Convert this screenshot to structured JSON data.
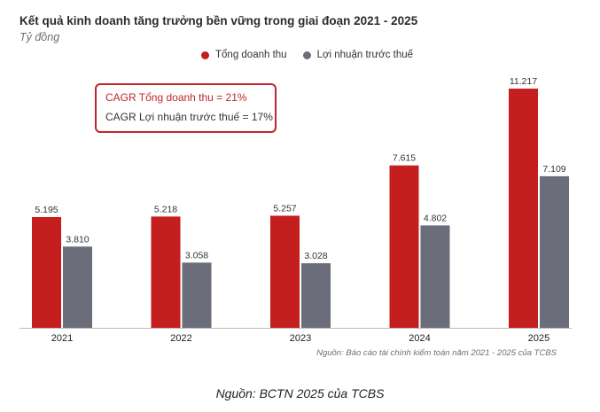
{
  "chart_data": {
    "type": "bar",
    "title": "Kết quả kinh doanh tăng trưởng bền vững trong giai đoạn 2021 - 2025",
    "subtitle": "Tỷ đồng",
    "categories": [
      "2021",
      "2022",
      "2023",
      "2024",
      "2025"
    ],
    "series": [
      {
        "name": "Tổng doanh thu",
        "values": [
          5195,
          5218,
          5257,
          7615,
          11217
        ],
        "labels": [
          "5.195",
          "5.218",
          "5.257",
          "7.615",
          "11.217"
        ],
        "color": "#c41e1e"
      },
      {
        "name": "Lợi nhuận trước thuế",
        "values": [
          3810,
          3058,
          3028,
          4802,
          7109
        ],
        "labels": [
          "3.810",
          "3.058",
          "3.028",
          "4.802",
          "7.109"
        ],
        "color": "#6b6e7a"
      }
    ],
    "ylim": [
      0,
      11217
    ],
    "grid": false,
    "legend": "top",
    "annotations": {
      "cagr_revenue": "CAGR Tổng doanh thu = 21%",
      "cagr_profit": "CAGR Lợi nhuận trước thuế = 17%"
    },
    "source": "Nguồn: Báo cáo tài chính kiểm toán năm 2021 - 2025 của TCBS"
  },
  "caption": "Nguồn: BCTN 2025 của TCBS",
  "colors": {
    "accent": "#c41e1e",
    "secondary": "#6b6e7a",
    "box_border": "#c0262d"
  }
}
